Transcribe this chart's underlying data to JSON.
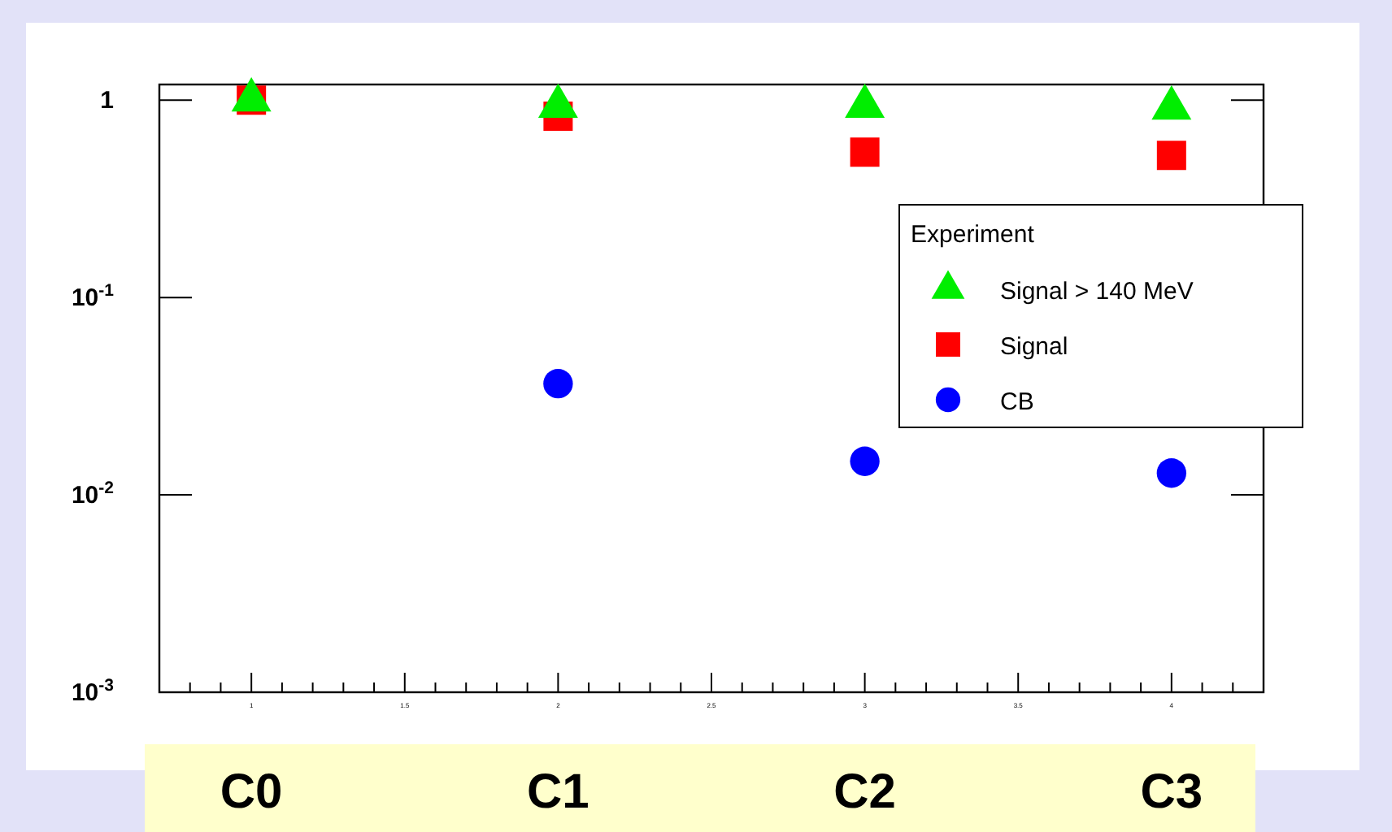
{
  "chart_data": {
    "type": "scatter",
    "log": "y",
    "grid": false,
    "legend": "right",
    "legend_title": "Experiment",
    "x": [
      1,
      2,
      3,
      4
    ],
    "xlim": [
      0.7,
      4.3
    ],
    "ylim": [
      0.001,
      1.2
    ],
    "xticks": [
      {
        "value": 0.8,
        "label": null
      },
      {
        "value": 0.9,
        "label": null
      },
      1,
      {
        "value": 1.1,
        "label": null
      },
      {
        "value": 1.2,
        "label": null
      },
      {
        "value": 1.3,
        "label": null
      },
      {
        "value": 1.4,
        "label": null
      },
      1.5,
      {
        "value": 1.6,
        "label": null
      },
      {
        "value": 1.7,
        "label": null
      },
      {
        "value": 1.8,
        "label": null
      },
      {
        "value": 1.9,
        "label": null
      },
      2,
      {
        "value": 2.1,
        "label": null
      },
      {
        "value": 2.2,
        "label": null
      },
      {
        "value": 2.3,
        "label": null
      },
      {
        "value": 2.4,
        "label": null
      },
      2.5,
      {
        "value": 2.6,
        "label": null
      },
      {
        "value": 2.7,
        "label": null
      },
      {
        "value": 2.8,
        "label": null
      },
      {
        "value": 2.9,
        "label": null
      },
      3,
      {
        "value": 3.1,
        "label": null
      },
      {
        "value": 3.2,
        "label": null
      },
      {
        "value": 3.3,
        "label": null
      },
      {
        "value": 3.4,
        "label": null
      },
      3.5,
      {
        "value": 3.6,
        "label": null
      },
      {
        "value": 3.7,
        "label": null
      },
      {
        "value": 3.8,
        "label": null
      },
      {
        "value": 3.9,
        "label": null
      },
      4,
      {
        "value": 4.1,
        "label": null
      },
      {
        "value": 4.2,
        "label": null
      }
    ],
    "yticks": [
      {
        "value": 0.001,
        "label": "10$^{-3}$"
      },
      {
        "value": 0.01,
        "label": "10$^{-2}$"
      },
      {
        "value": 0.1,
        "label": "10$^{-1}$"
      },
      1
    ],
    "series": [
      {
        "name": "Signal > 140 MeV",
        "color": "#00ee00",
        "marker": "triangle",
        "values": [
          1.0,
          0.93,
          0.93,
          0.91
        ]
      },
      {
        "name": "Signal",
        "color": "#ff0000",
        "marker": "square",
        "values": [
          1.0,
          0.83,
          0.545,
          0.525
        ]
      },
      {
        "name": "CB",
        "color": "#0000ff",
        "marker": "circle",
        "values": [
          null,
          0.0366,
          0.0148,
          0.0129
        ]
      }
    ],
    "annotations": [
      "C0",
      "C1",
      "C2",
      "C3"
    ]
  }
}
